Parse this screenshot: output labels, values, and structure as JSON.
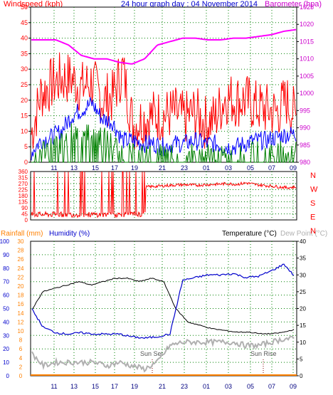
{
  "header": {
    "wind_label": "Windspeed (kph)",
    "title": "24 hour graph day : 04 November 2014",
    "baro_label": "Barometer (hpa)"
  },
  "footer_labels": {
    "rainfall": "Rainfall (mm)",
    "humidity": "Humidity (%)",
    "temperature": "Temperature (°C)",
    "dewpoint": "Dew Point (°C)",
    "sunset": "Sun Set",
    "sunrise": "Sun Rise"
  },
  "colors": {
    "wind_gust": "#ff0000",
    "wind_avg": "#0000ff",
    "wind_low": "#008000",
    "barometer": "#ff00ff",
    "direction": "#ff0000",
    "temperature": "#000000",
    "humidity": "#0000cc",
    "dewpoint": "#b0b0b0",
    "rainfall": "#ff8000",
    "axis_left": "#ff0000",
    "axis_right": "#cc00cc",
    "grid": "#008000"
  },
  "chart_data": [
    {
      "type": "line",
      "x_ticks": [
        "11",
        "13",
        "15",
        "17",
        "19",
        "21",
        "23",
        "01",
        "03",
        "05",
        "07",
        "09"
      ],
      "y_left_ticks": [
        "0",
        "5",
        "10",
        "15",
        "20",
        "25",
        "30",
        "35",
        "40",
        "45",
        "50"
      ],
      "y_right_ticks": [
        "980",
        "985",
        "990",
        "995",
        "1000",
        "1005",
        "1010",
        "1015",
        "1020",
        "1025"
      ],
      "ylim": [
        0,
        50
      ],
      "y2lim": [
        980,
        1025
      ],
      "series": [
        {
          "name": "Windspeed (kph)",
          "values": [
            8,
            22,
            25,
            27,
            27,
            24,
            26,
            20,
            21,
            30,
            12,
            14,
            15,
            15,
            16,
            14,
            16,
            13,
            14,
            21,
            20,
            20,
            18,
            17,
            16,
            20,
            14
          ]
        },
        {
          "name": "",
          "values": [
            3,
            7,
            8,
            10,
            15,
            17,
            19,
            14,
            13,
            7,
            7,
            6,
            6,
            5,
            6,
            6,
            7,
            6,
            6,
            5,
            5,
            6,
            7,
            7,
            8,
            9,
            9
          ]
        },
        {
          "name": "",
          "values": [
            0,
            4,
            5,
            6,
            9,
            10,
            11,
            8,
            6,
            3,
            2,
            2,
            2,
            2,
            2,
            2,
            2,
            2,
            2,
            1,
            1,
            2,
            3,
            3,
            3,
            4,
            4
          ]
        },
        {
          "name": "Barometer (hpa)",
          "values": [
            1015.5,
            1015.5,
            1015.5,
            1014,
            1011,
            1010,
            1010,
            1009,
            1008.5,
            1010,
            1014,
            1015,
            1016,
            1016,
            1015.5,
            1015.5,
            1016,
            1016,
            1016.5,
            1017,
            1018,
            1018.5
          ]
        }
      ]
    },
    {
      "type": "line",
      "x_ticks": [
        "11",
        "13",
        "15",
        "17",
        "19",
        "21",
        "23",
        "01",
        "03",
        "05",
        "07",
        "09"
      ],
      "y_left_ticks": [
        "0",
        "45",
        "90",
        "135",
        "180",
        "225",
        "270",
        "315",
        "360"
      ],
      "y_right_ticks": [
        "N",
        "W",
        "S",
        "E",
        "N"
      ],
      "ylim": [
        0,
        360
      ],
      "series": [
        {
          "name": "",
          "values": [
            30,
            40,
            360,
            30,
            360,
            60,
            360,
            30,
            360,
            20,
            360,
            40,
            25,
            245,
            250,
            255,
            260,
            262,
            258,
            262,
            265,
            270,
            265,
            275,
            262,
            255,
            248,
            240,
            245
          ]
        }
      ]
    },
    {
      "type": "line",
      "x_ticks": [
        "11",
        "13",
        "15",
        "17",
        "19",
        "21",
        "23",
        "01",
        "03",
        "05",
        "07",
        "09"
      ],
      "y_left_ticks": [
        "0",
        "10",
        "20",
        "30",
        "40",
        "50",
        "60",
        "70",
        "80",
        "90",
        "100"
      ],
      "y_mid_ticks": [
        "0",
        "2",
        "4",
        "6",
        "8",
        "10",
        "12",
        "14",
        "16",
        "18",
        "20",
        "22",
        "24",
        "26",
        "28",
        "30"
      ],
      "y_right_ticks": [
        "0",
        "5",
        "10",
        "15",
        "20",
        "25",
        "30",
        "35",
        "40"
      ],
      "ylim": [
        0,
        100
      ],
      "y2lim": [
        0,
        40
      ],
      "series": [
        {
          "name": "Temperature (°C)",
          "values": [
            19,
            25,
            26,
            27,
            28,
            27,
            28,
            29,
            29,
            28,
            29,
            28,
            20,
            16,
            15,
            14,
            13.5,
            13,
            13,
            12.5,
            12.5,
            13,
            14
          ]
        },
        {
          "name": "Humidity (%)",
          "values": [
            51,
            36,
            32,
            31,
            32,
            31,
            31,
            31,
            29,
            28,
            29,
            31,
            71,
            73,
            75,
            75,
            76,
            73,
            74,
            78,
            83,
            72
          ]
        },
        {
          "name": "Dew Point (°C)",
          "values": [
            7,
            3,
            4,
            4,
            4,
            4,
            3,
            4,
            3,
            2,
            4,
            9,
            10,
            10,
            10,
            10,
            10,
            9,
            9,
            10,
            11,
            11
          ]
        },
        {
          "name": "Rainfall (mm)",
          "values": [
            0,
            0,
            0,
            0,
            0,
            0,
            0,
            0,
            0,
            0,
            0,
            0
          ]
        }
      ],
      "annotations": [
        "Sun Set",
        "Sun Rise"
      ]
    }
  ]
}
